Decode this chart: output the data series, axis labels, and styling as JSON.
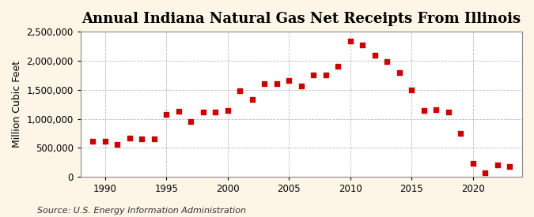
{
  "title": "Annual Indiana Natural Gas Net Receipts From Illinois",
  "ylabel": "Million Cubic Feet",
  "source": "Source: U.S. Energy Information Administration",
  "background_color": "#fdf5e6",
  "plot_background_color": "#ffffff",
  "marker_color": "#cc0000",
  "grid_color": "#aaaaaa",
  "years": [
    1989,
    1990,
    1991,
    1992,
    1993,
    1994,
    1995,
    1996,
    1997,
    1998,
    1999,
    2000,
    2001,
    2002,
    2003,
    2004,
    2005,
    2006,
    2007,
    2008,
    2009,
    2010,
    2011,
    2012,
    2013,
    2014,
    2015,
    2016,
    2017,
    2018,
    2019,
    2020,
    2021,
    2022,
    2023
  ],
  "values": [
    620000,
    615000,
    555000,
    670000,
    650000,
    655000,
    1080000,
    1130000,
    950000,
    1110000,
    1120000,
    1140000,
    1480000,
    1340000,
    1600000,
    1600000,
    1660000,
    1570000,
    1750000,
    1760000,
    1910000,
    2340000,
    2270000,
    2090000,
    1990000,
    1790000,
    1500000,
    1140000,
    1160000,
    1110000,
    755000,
    240000,
    75000,
    200000,
    185000
  ],
  "xlim": [
    1988,
    2024
  ],
  "ylim": [
    0,
    2500000
  ],
  "yticks": [
    0,
    500000,
    1000000,
    1500000,
    2000000,
    2500000
  ],
  "xticks": [
    1990,
    1995,
    2000,
    2005,
    2010,
    2015,
    2020
  ],
  "title_fontsize": 13,
  "label_fontsize": 9,
  "tick_fontsize": 8.5,
  "source_fontsize": 8
}
